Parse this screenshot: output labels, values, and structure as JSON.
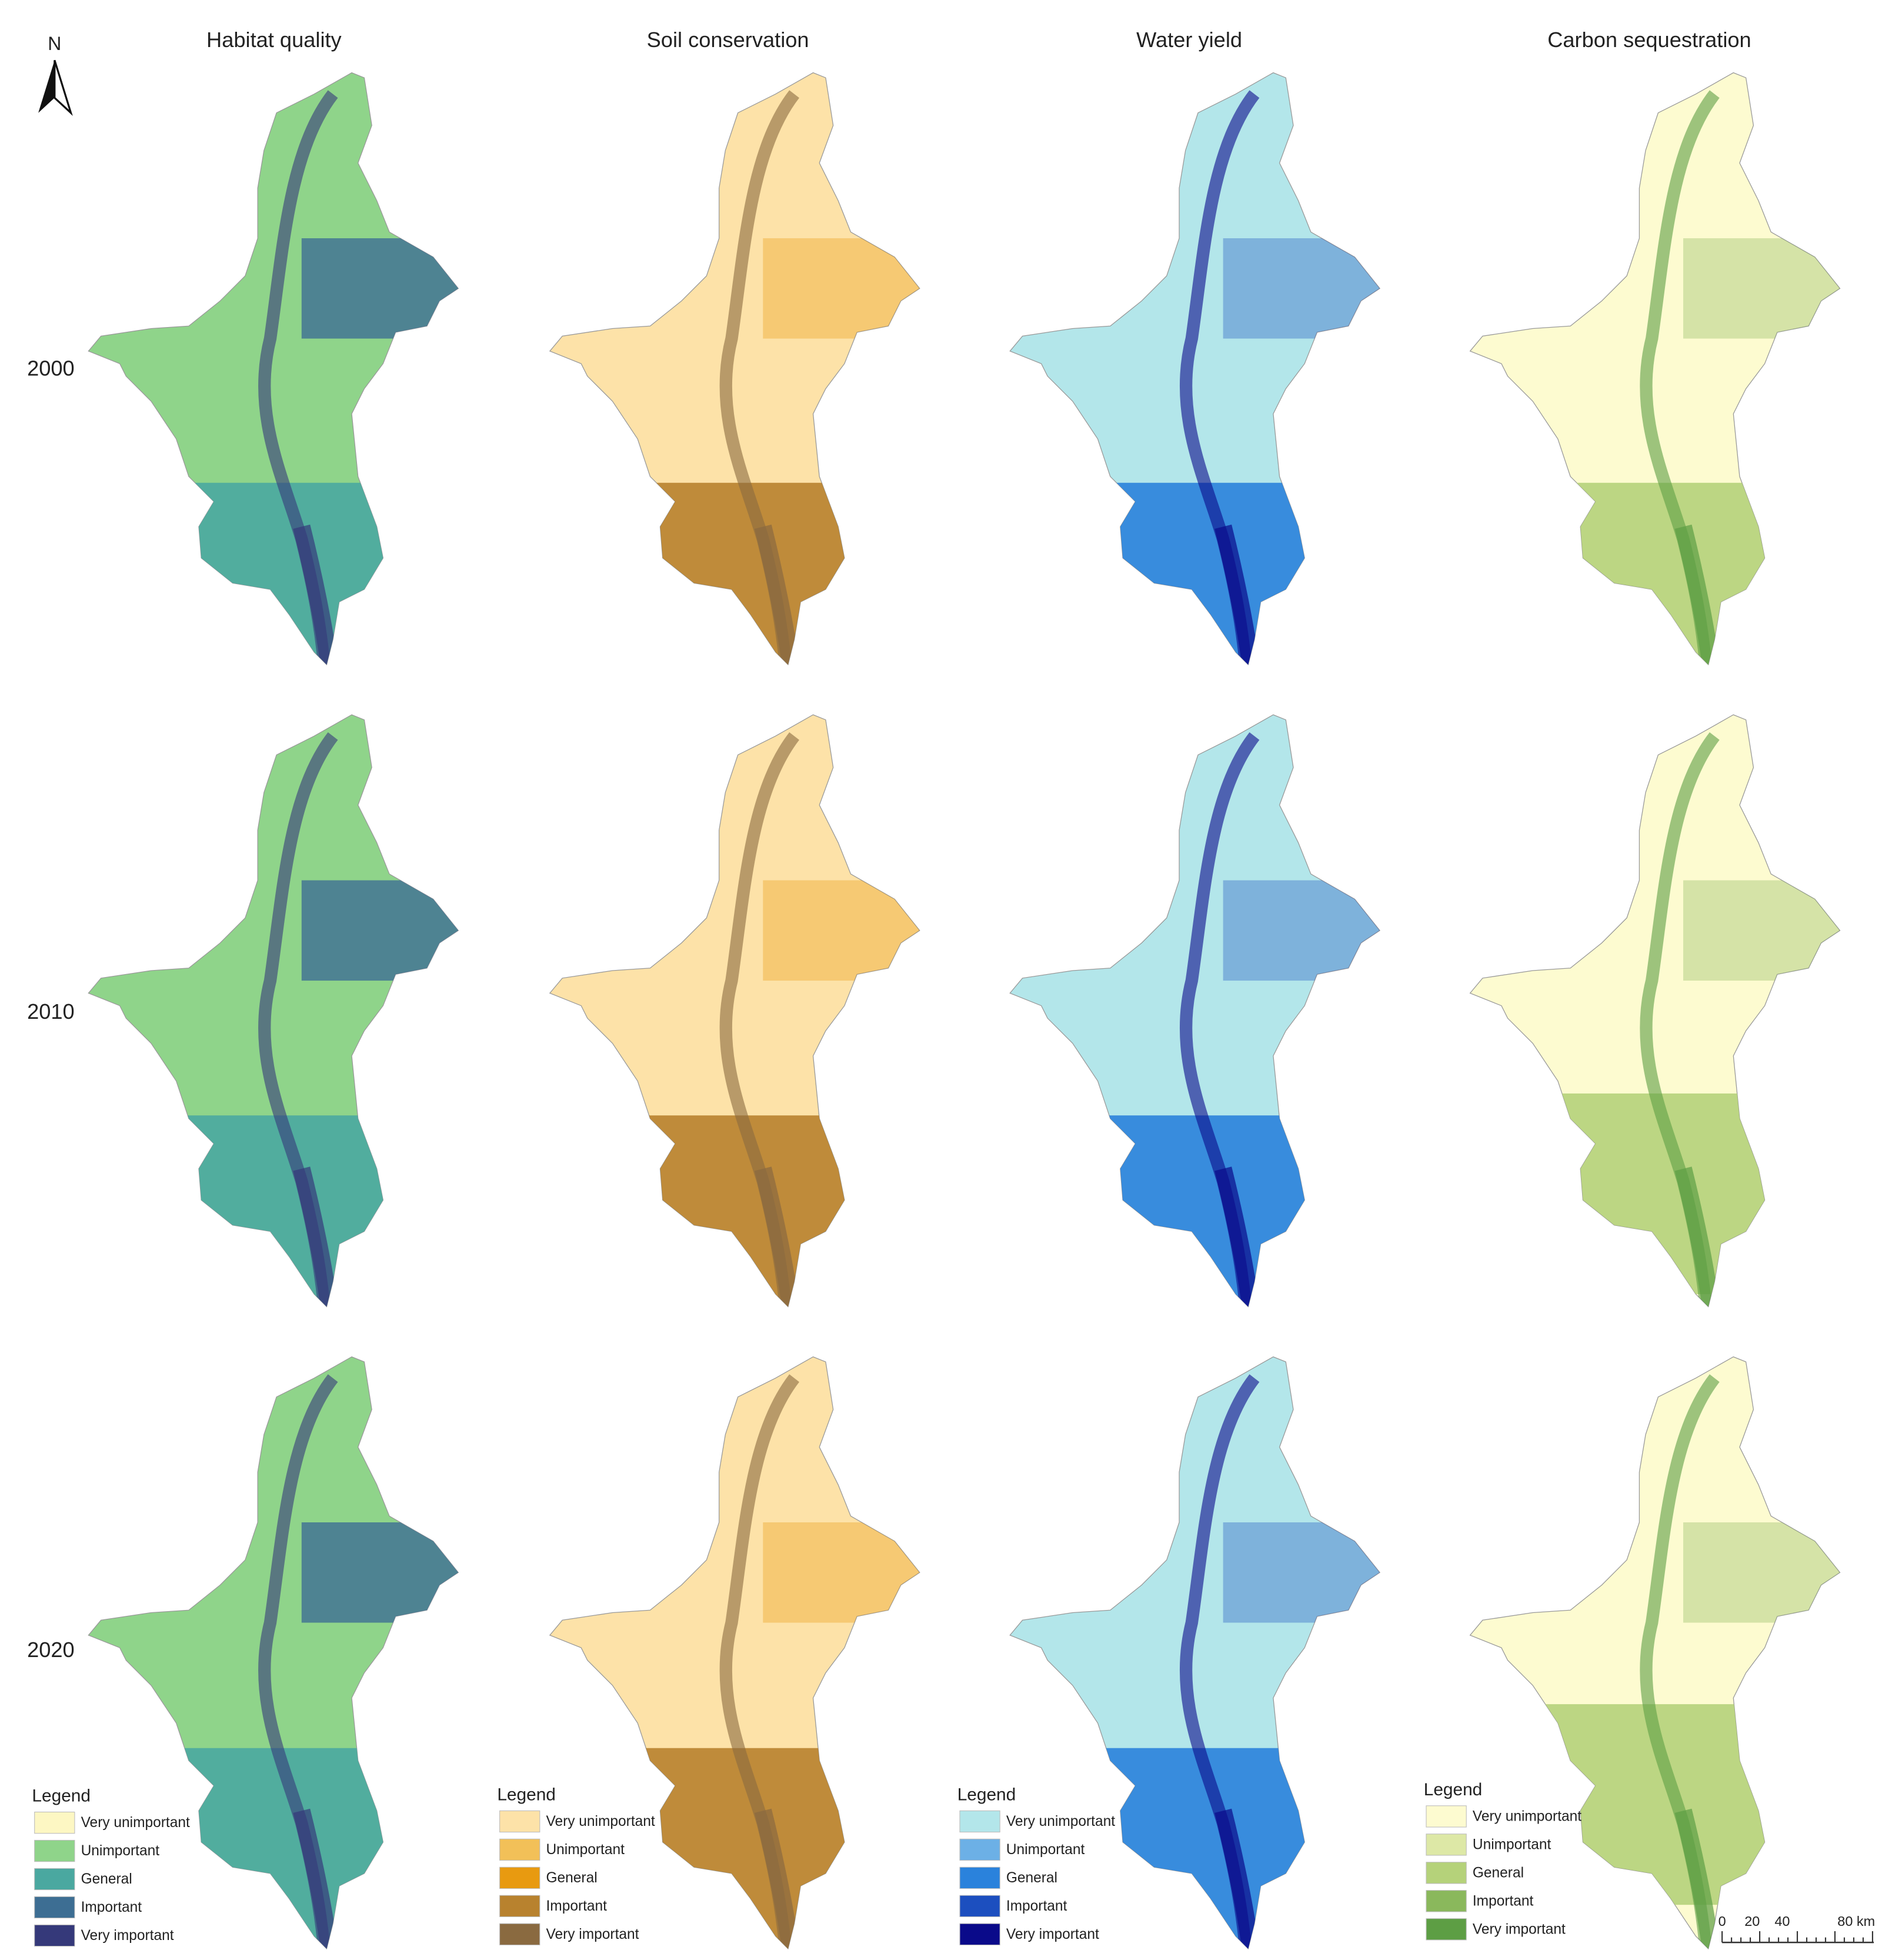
{
  "north": "N",
  "columns": [
    "Habitat quality",
    "Soil conservation",
    "Water yield",
    "Carbon sequestration"
  ],
  "rows": [
    "2000",
    "2010",
    "2020"
  ],
  "legends": [
    {
      "title": "Legend",
      "items": [
        {
          "label": "Very unimportant",
          "color": "#fdf7c3"
        },
        {
          "label": "Unimportant",
          "color": "#8fd48a"
        },
        {
          "label": "General",
          "color": "#4aa8a0"
        },
        {
          "label": "Important",
          "color": "#3d6e93"
        },
        {
          "label": "Very important",
          "color": "#35397a"
        }
      ]
    },
    {
      "title": "Legend",
      "items": [
        {
          "label": "Very unimportant",
          "color": "#fde2a8"
        },
        {
          "label": "Unimportant",
          "color": "#f2c058"
        },
        {
          "label": "General",
          "color": "#e89a10"
        },
        {
          "label": "Important",
          "color": "#b8822e"
        },
        {
          "label": "Very important",
          "color": "#8a6a40"
        }
      ]
    },
    {
      "title": "Legend",
      "items": [
        {
          "label": "Very unimportant",
          "color": "#b3e6ea"
        },
        {
          "label": "Unimportant",
          "color": "#6cb0e6"
        },
        {
          "label": "General",
          "color": "#2a82dc"
        },
        {
          "label": "Important",
          "color": "#1c4fbf"
        },
        {
          "label": "Very important",
          "color": "#0a0a8a"
        }
      ]
    },
    {
      "title": "Legend",
      "items": [
        {
          "label": "Very unimportant",
          "color": "#fdfbd0"
        },
        {
          "label": "Unimportant",
          "color": "#dde8a6"
        },
        {
          "label": "General",
          "color": "#b5d27a"
        },
        {
          "label": "Important",
          "color": "#8ab85c"
        },
        {
          "label": "Very important",
          "color": "#5d9e44"
        }
      ]
    }
  ],
  "scale_bar": [
    "0",
    "20",
    "40",
    "80 km"
  ]
}
